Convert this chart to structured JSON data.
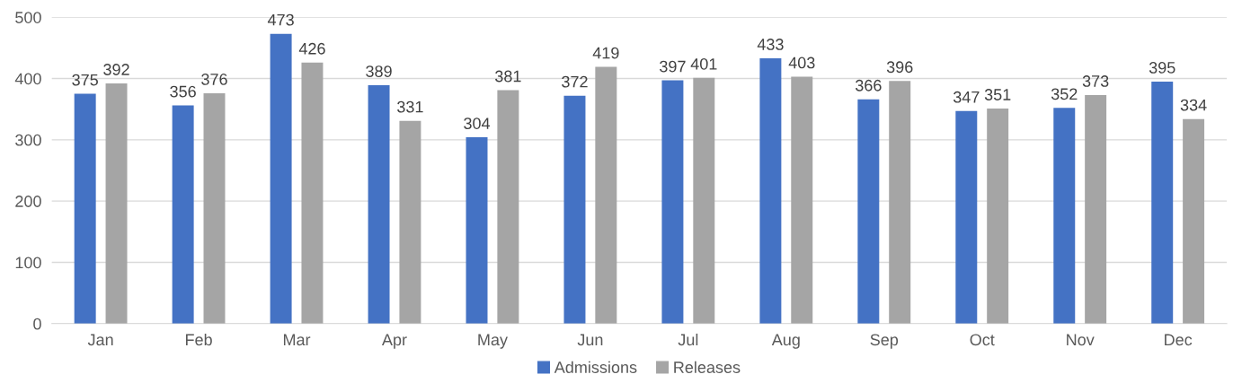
{
  "chart_data": {
    "type": "bar",
    "categories": [
      "Jan",
      "Feb",
      "Mar",
      "Apr",
      "May",
      "Jun",
      "Jul",
      "Aug",
      "Sep",
      "Oct",
      "Nov",
      "Dec"
    ],
    "series": [
      {
        "name": "Admissions",
        "color": "#4472c4",
        "values": [
          375,
          356,
          473,
          389,
          304,
          372,
          397,
          433,
          366,
          347,
          352,
          395
        ]
      },
      {
        "name": "Releases",
        "color": "#a5a5a5",
        "values": [
          392,
          376,
          426,
          331,
          381,
          419,
          401,
          403,
          396,
          351,
          373,
          334
        ]
      }
    ],
    "ylim": [
      0,
      500
    ],
    "yticks": [
      0,
      100,
      200,
      300,
      400,
      500
    ],
    "grid": "y",
    "legend": "bottom",
    "data_labels": true
  }
}
